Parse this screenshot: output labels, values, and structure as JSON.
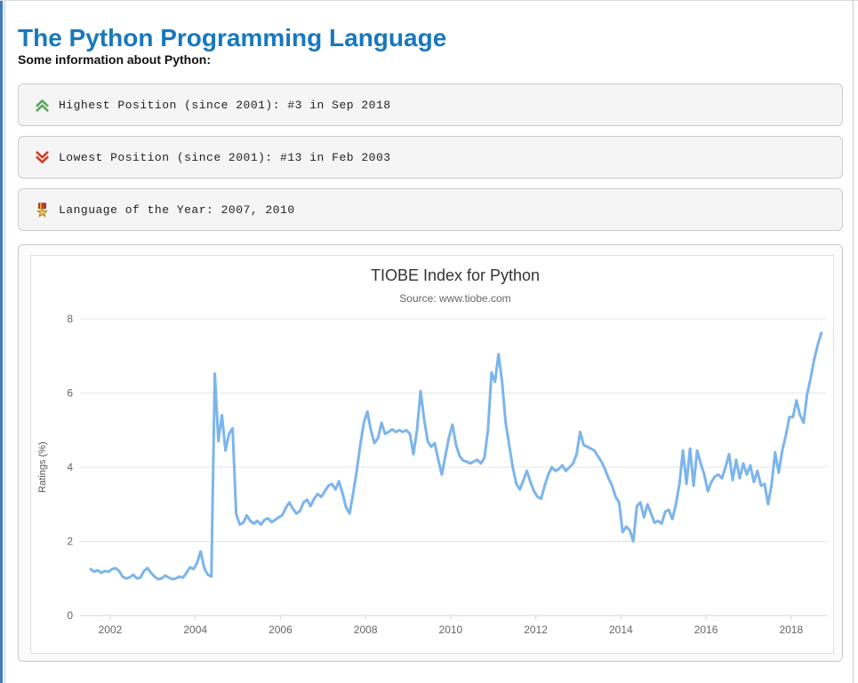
{
  "page": {
    "title": "The Python Programming Language",
    "subtitle": "Some information about Python:"
  },
  "facts": [
    {
      "icon": "double-chevron-up-icon",
      "icon_color": "#58a55a",
      "text": "Highest Position (since 2001): #3 in Sep 2018"
    },
    {
      "icon": "double-chevron-down-icon",
      "icon_color": "#d63a1e",
      "text": "Lowest Position (since 2001): #13 in Feb 2003"
    },
    {
      "icon": "medal-icon",
      "icon_color": "#f2c14e",
      "text": "Language of the Year: 2007, 2010"
    }
  ],
  "chart_data": {
    "type": "line",
    "title": "TIOBE Index for Python",
    "subtitle": "Source: www.tiobe.com",
    "xlabel": "",
    "ylabel": "Ratings (%)",
    "series_name": "Python",
    "legend": "off",
    "grid": "horizontal-only",
    "line_color": "#7cb5ec",
    "grid_color": "#e6e6e6",
    "axis_line_color": "#ccd6eb",
    "label_color": "#666666",
    "title_color": "#333333",
    "subtitle_color": "#666666",
    "xlim": [
      2001.29,
      2018.84
    ],
    "ylim": [
      0,
      8
    ],
    "xticks": [
      2002,
      2004,
      2006,
      2008,
      2010,
      2012,
      2014,
      2016,
      2018
    ],
    "yticks": [
      0,
      2,
      4,
      6,
      8
    ],
    "x_start": 2001.5417,
    "x_step_years": 0.0833333,
    "values": [
      1.25,
      1.18,
      1.22,
      1.15,
      1.2,
      1.18,
      1.25,
      1.28,
      1.2,
      1.05,
      1.0,
      1.03,
      1.1,
      1.0,
      1.02,
      1.2,
      1.28,
      1.15,
      1.05,
      0.98,
      1.0,
      1.08,
      1.02,
      0.98,
      1.0,
      1.05,
      1.02,
      1.15,
      1.3,
      1.25,
      1.42,
      1.73,
      1.28,
      1.1,
      1.05,
      6.52,
      4.7,
      5.4,
      4.45,
      4.9,
      5.05,
      2.75,
      2.45,
      2.5,
      2.7,
      2.55,
      2.48,
      2.55,
      2.45,
      2.58,
      2.62,
      2.52,
      2.58,
      2.65,
      2.7,
      2.9,
      3.05,
      2.88,
      2.75,
      2.82,
      3.05,
      3.12,
      2.95,
      3.15,
      3.28,
      3.2,
      3.35,
      3.5,
      3.55,
      3.4,
      3.62,
      3.3,
      2.92,
      2.75,
      3.3,
      3.9,
      4.6,
      5.2,
      5.5,
      5.0,
      4.65,
      4.78,
      5.2,
      4.9,
      4.95,
      5.02,
      4.95,
      5.0,
      4.95,
      5.0,
      4.9,
      4.35,
      5.0,
      6.05,
      5.3,
      4.7,
      4.55,
      4.65,
      4.2,
      3.8,
      4.3,
      4.8,
      5.15,
      4.6,
      4.3,
      4.18,
      4.15,
      4.1,
      4.15,
      4.2,
      4.1,
      4.25,
      5.0,
      6.55,
      6.3,
      7.05,
      6.3,
      5.2,
      4.6,
      4.0,
      3.55,
      3.4,
      3.65,
      3.9,
      3.6,
      3.35,
      3.2,
      3.15,
      3.5,
      3.8,
      4.0,
      3.9,
      3.95,
      4.05,
      3.9,
      4.0,
      4.1,
      4.35,
      4.95,
      4.6,
      4.55,
      4.5,
      4.45,
      4.3,
      4.15,
      3.95,
      3.7,
      3.5,
      3.2,
      3.05,
      2.25,
      2.4,
      2.3,
      2.0,
      2.95,
      3.05,
      2.65,
      3.0,
      2.75,
      2.5,
      2.55,
      2.48,
      2.8,
      2.85,
      2.6,
      3.0,
      3.55,
      4.45,
      3.55,
      4.5,
      3.5,
      4.45,
      4.1,
      3.8,
      3.35,
      3.6,
      3.75,
      3.8,
      3.7,
      4.0,
      4.35,
      3.65,
      4.2,
      3.7,
      4.1,
      3.8,
      4.05,
      3.6,
      3.9,
      3.5,
      3.55,
      3.0,
      3.55,
      4.4,
      3.85,
      4.45,
      4.85,
      5.35,
      5.35,
      5.8,
      5.4,
      5.2,
      5.95,
      6.4,
      6.9,
      7.3,
      7.62
    ]
  }
}
